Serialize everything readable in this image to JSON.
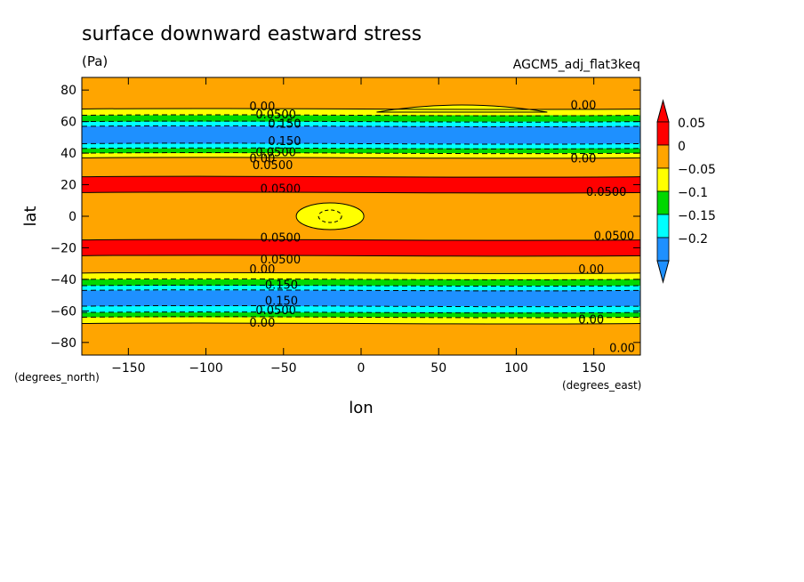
{
  "chart_data": {
    "type": "heatmap",
    "title": "surface downward eastward stress",
    "units": "(Pa)",
    "dataset": "AGCM5_adj_flat3keq",
    "xlabel": "lon",
    "ylabel": "lat",
    "x_unit_label": "(degrees_east)",
    "y_unit_label": "(degrees_north)",
    "xlim": [
      -180,
      180
    ],
    "ylim": [
      -88,
      88
    ],
    "x_ticks": [
      -150,
      -100,
      -50,
      0,
      50,
      100,
      150
    ],
    "x_tick_labels": [
      "−150",
      "−100",
      "−50",
      "0",
      "50",
      "100",
      "150"
    ],
    "y_ticks": [
      80,
      60,
      40,
      20,
      0,
      -20,
      -40,
      -60,
      -80
    ],
    "y_tick_labels": [
      "80",
      "60",
      "40",
      "20",
      "0",
      "−20",
      "−40",
      "−60",
      "−80"
    ],
    "colorbar": {
      "levels": [
        0.05,
        0,
        -0.05,
        -0.1,
        -0.15,
        -0.2
      ],
      "labels": [
        "0.05",
        "0",
        "−0.05",
        "−0.1",
        "−0.15",
        "−0.2"
      ],
      "colors": [
        "#ff0000",
        "#ffa500",
        "#ffff00",
        "#00d800",
        "#00ffff",
        "#1e90ff"
      ],
      "over_color": "#ff0000",
      "under_color": "#1e90ff"
    },
    "zonal_profile": [
      {
        "lat_from": 88,
        "lat_to": 68,
        "band": "0 to 0.05"
      },
      {
        "lat_from": 68,
        "lat_to": 64,
        "band": "-0.05 to 0"
      },
      {
        "lat_from": 64,
        "lat_to": 60,
        "band": "-0.1 to -0.05"
      },
      {
        "lat_from": 60,
        "lat_to": 57,
        "band": "-0.15 to -0.1"
      },
      {
        "lat_from": 57,
        "lat_to": 46,
        "band": "-0.2 to -0.15"
      },
      {
        "lat_from": 46,
        "lat_to": 43,
        "band": "-0.15 to -0.1"
      },
      {
        "lat_from": 43,
        "lat_to": 40,
        "band": "-0.1 to -0.05"
      },
      {
        "lat_from": 40,
        "lat_to": 37,
        "band": "-0.05 to 0"
      },
      {
        "lat_from": 37,
        "lat_to": 25,
        "band": "0 to 0.05"
      },
      {
        "lat_from": 25,
        "lat_to": 15,
        "band": "> 0.05"
      },
      {
        "lat_from": 15,
        "lat_to": -15,
        "band": "0 to 0.05"
      },
      {
        "lat_from": -15,
        "lat_to": -25,
        "band": "> 0.05"
      },
      {
        "lat_from": -25,
        "lat_to": -36,
        "band": "0 to 0.05"
      },
      {
        "lat_from": -36,
        "lat_to": -40,
        "band": "-0.05 to 0"
      },
      {
        "lat_from": -40,
        "lat_to": -44,
        "band": "-0.1 to -0.05"
      },
      {
        "lat_from": -44,
        "lat_to": -47,
        "band": "-0.15 to -0.1"
      },
      {
        "lat_from": -47,
        "lat_to": -57,
        "band": "-0.2 to -0.15"
      },
      {
        "lat_from": -57,
        "lat_to": -61,
        "band": "-0.15 to -0.1"
      },
      {
        "lat_from": -61,
        "lat_to": -64,
        "band": "-0.1 to -0.05"
      },
      {
        "lat_from": -64,
        "lat_to": -68,
        "band": "-0.05 to 0"
      },
      {
        "lat_from": -68,
        "lat_to": -88,
        "band": "0 to 0.05"
      }
    ],
    "features": [
      {
        "name": "equatorial easterly minimum",
        "lon": -20,
        "lat": 0,
        "band": "-0.05 to 0"
      },
      {
        "name": "northern high-latitude negative patch",
        "lon_range": [
          10,
          120
        ],
        "lat_range": [
          66,
          75
        ],
        "band": "-0.05 to 0"
      }
    ],
    "contour_labels": [
      {
        "text": "0.00",
        "lon": -72,
        "lat": 67
      },
      {
        "text": "0.0500",
        "lon": -68,
        "lat": 62
      },
      {
        "text": "0.150",
        "lon": -60,
        "lat": 56
      },
      {
        "text": "0.150",
        "lon": -60,
        "lat": 45
      },
      {
        "text": "0.00",
        "lon": -72,
        "lat": 34
      },
      {
        "text": "0.0500",
        "lon": -68,
        "lat": 38
      },
      {
        "text": "0.0500",
        "lon": -70,
        "lat": 30
      },
      {
        "text": "0.0500",
        "lon": -65,
        "lat": 15
      },
      {
        "text": "0.0500",
        "lon": -65,
        "lat": -16
      },
      {
        "text": "0.0500",
        "lon": -65,
        "lat": -30
      },
      {
        "text": "0.00",
        "lon": -72,
        "lat": -36
      },
      {
        "text": "0.150",
        "lon": -62,
        "lat": -46
      },
      {
        "text": "0.150",
        "lon": -62,
        "lat": -56
      },
      {
        "text": "0.0500",
        "lon": -68,
        "lat": -62
      },
      {
        "text": "0.00",
        "lon": -72,
        "lat": -70
      },
      {
        "text": "0.00",
        "lon": 135,
        "lat": 68
      },
      {
        "text": "0.00",
        "lon": 135,
        "lat": 34
      },
      {
        "text": "0.0500",
        "lon": 145,
        "lat": 13
      },
      {
        "text": "0.0500",
        "lon": 150,
        "lat": -15
      },
      {
        "text": "0.00",
        "lon": 140,
        "lat": -36
      },
      {
        "text": "0.00",
        "lon": 140,
        "lat": -68
      },
      {
        "text": "0.00",
        "lon": 160,
        "lat": -86
      }
    ]
  }
}
